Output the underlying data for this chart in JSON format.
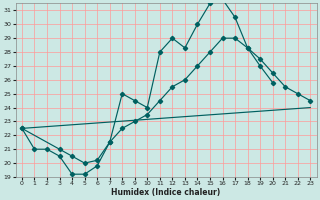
{
  "xlabel": "Humidex (Indice chaleur)",
  "bg_color": "#cce8e4",
  "grid_color": "#ff9999",
  "line_color": "#006060",
  "xlim": [
    -0.5,
    23.5
  ],
  "ylim": [
    19,
    31.5
  ],
  "yticks": [
    19,
    20,
    21,
    22,
    23,
    24,
    25,
    26,
    27,
    28,
    29,
    30,
    31
  ],
  "xticks": [
    0,
    1,
    2,
    3,
    4,
    5,
    6,
    7,
    8,
    9,
    10,
    11,
    12,
    13,
    14,
    15,
    16,
    17,
    18,
    19,
    20,
    21,
    22,
    23
  ],
  "line1_x": [
    0,
    1,
    2,
    3,
    4,
    5,
    6,
    7,
    8,
    9,
    10,
    11,
    12,
    13,
    14,
    15,
    16,
    17,
    18,
    19,
    20
  ],
  "line1_y": [
    22.5,
    21.0,
    21.0,
    20.5,
    19.2,
    19.2,
    19.8,
    21.5,
    25.0,
    24.5,
    24.0,
    28.0,
    29.0,
    28.3,
    30.0,
    31.5,
    31.8,
    30.5,
    28.3,
    27.0,
    25.8
  ],
  "line2_x": [
    0,
    3,
    4,
    5,
    6,
    7,
    8,
    9,
    10,
    11,
    12,
    13,
    14,
    15,
    16,
    17,
    18,
    19,
    20,
    21,
    22,
    23
  ],
  "line2_y": [
    22.5,
    21.0,
    20.5,
    20.0,
    20.2,
    21.5,
    22.5,
    23.0,
    23.5,
    24.5,
    25.5,
    26.0,
    27.0,
    28.0,
    29.0,
    29.0,
    28.3,
    27.5,
    26.5,
    25.5,
    25.0,
    24.5
  ],
  "line3_x": [
    0,
    23
  ],
  "line3_y": [
    22.5,
    24.0
  ]
}
